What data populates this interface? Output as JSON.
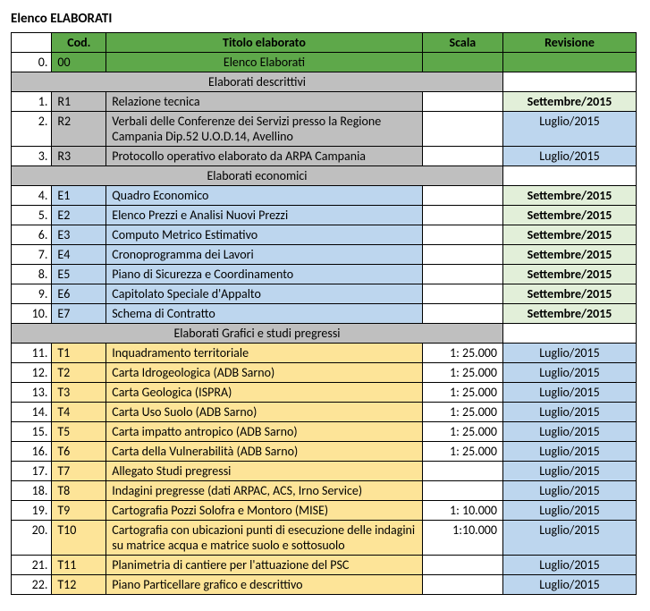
{
  "colors": {
    "headerGreen": "#5ea84a",
    "plain": "#ffffff",
    "lightGrey": "#bfbfbf",
    "lightBlue": "#bdd6ee",
    "lightGreen": "#e2efd9",
    "lightOrange": "#fde498"
  },
  "title": "Elenco ELABORATI",
  "columns": {
    "cod": "Cod.",
    "titolo": "Titolo elaborato",
    "scala": "Scala",
    "rev": "Revisione"
  },
  "row0": {
    "num": "0.",
    "cod": "00",
    "tit": "Elenco Elaborati",
    "scala": "",
    "rev": ""
  },
  "sections": [
    {
      "header": "Elaborati descrittivi",
      "codFill": "lightGrey",
      "rows": [
        {
          "num": "1.",
          "cod": "R1",
          "tit": "Relazione tecnica",
          "scala": "",
          "rev": "Settembre/2015",
          "revFill": "lightGreen",
          "revBold": true
        },
        {
          "num": "2.",
          "cod": "R2",
          "tit": "Verbali delle Conferenze dei Servizi presso la Regione Campania Dip.52  U.O.D.14, Avellino",
          "scala": "",
          "rev": "Luglio/2015",
          "revFill": "lightBlue"
        },
        {
          "num": "3.",
          "cod": "R3",
          "tit": "Protocollo operativo elaborato da ARPA Campania",
          "scala": "",
          "rev": "Luglio/2015",
          "revFill": "lightBlue"
        }
      ]
    },
    {
      "header": "Elaborati economici",
      "codFill": "lightBlue",
      "rows": [
        {
          "num": "4.",
          "cod": "E1",
          "tit": "Quadro Economico",
          "scala": "",
          "rev": "Settembre/2015",
          "revFill": "lightGreen",
          "revBold": true
        },
        {
          "num": "5.",
          "cod": "E2",
          "tit": "Elenco Prezzi e Analisi Nuovi Prezzi",
          "scala": "",
          "rev": "Settembre/2015",
          "revFill": "lightGreen",
          "revBold": true
        },
        {
          "num": "6.",
          "cod": "E3",
          "tit": "Computo Metrico Estimativo",
          "scala": "",
          "rev": "Settembre/2015",
          "revFill": "lightGreen",
          "revBold": true
        },
        {
          "num": "7.",
          "cod": "E4",
          "tit": "Cronoprogramma dei Lavori",
          "scala": "",
          "rev": "Settembre/2015",
          "revFill": "lightGreen",
          "revBold": true
        },
        {
          "num": "8.",
          "cod": "E5",
          "tit": "Piano di Sicurezza e Coordinamento",
          "scala": "",
          "rev": "Settembre/2015",
          "revFill": "lightGreen",
          "revBold": true
        },
        {
          "num": "9.",
          "cod": "E6",
          "tit": "Capitolato Speciale d'Appalto",
          "scala": "",
          "rev": "Settembre/2015",
          "revFill": "lightGreen",
          "revBold": true
        },
        {
          "num": "10.",
          "cod": "E7",
          "tit": "Schema di Contratto",
          "scala": "",
          "rev": "Settembre/2015",
          "revFill": "lightGreen",
          "revBold": true
        }
      ]
    },
    {
      "header": "Elaborati Grafici e studi pregressi",
      "codFill": "lightOrange",
      "rows": [
        {
          "num": "11.",
          "cod": "T1",
          "tit": "Inquadramento territoriale",
          "scala": "1: 25.000",
          "rev": "Luglio/2015",
          "revFill": "lightBlue"
        },
        {
          "num": "12.",
          "cod": "T2",
          "tit": "Carta Idrogeologica (ADB Sarno)",
          "scala": "1: 25.000",
          "rev": "Luglio/2015",
          "revFill": "lightBlue"
        },
        {
          "num": "13.",
          "cod": "T3",
          "tit": "Carta Geologica (ISPRA)",
          "scala": "1: 25.000",
          "rev": "Luglio/2015",
          "revFill": "lightBlue"
        },
        {
          "num": "14.",
          "cod": "T4",
          "tit": "Carta Uso Suolo (ADB Sarno)",
          "scala": "1: 25.000",
          "rev": "Luglio/2015",
          "revFill": "lightBlue"
        },
        {
          "num": "15.",
          "cod": "T5",
          "tit": "Carta impatto antropico (ADB Sarno)",
          "scala": "1: 25.000",
          "rev": "Luglio/2015",
          "revFill": "lightBlue"
        },
        {
          "num": "16.",
          "cod": "T6",
          "tit": "Carta della Vulnerabilità (ADB Sarno)",
          "scala": "1: 25.000",
          "rev": "Luglio/2015",
          "revFill": "lightBlue"
        },
        {
          "num": "17.",
          "cod": "T7",
          "tit": "Allegato Studi pregressi",
          "scala": "",
          "rev": "Luglio/2015",
          "revFill": "lightBlue"
        },
        {
          "num": "18.",
          "cod": "T8",
          "tit": "Indagini pregresse (dati ARPAC, ACS, Irno Service)",
          "scala": "",
          "rev": "Luglio/2015",
          "revFill": "lightBlue"
        },
        {
          "num": "19.",
          "cod": "T9",
          "tit": "Cartografia Pozzi Solofra e Montoro (MISE)",
          "scala": "1: 10.000",
          "rev": "Luglio/2015",
          "revFill": "lightBlue"
        },
        {
          "num": "20.",
          "cod": "T10",
          "tit": "Cartografia con ubicazioni punti di esecuzione delle indagini su matrice acqua e matrice suolo e sottosuolo",
          "scala": "1:10.000",
          "rev": "Luglio/2015",
          "revFill": "lightBlue"
        },
        {
          "num": "21.",
          "cod": "T11",
          "tit": "Planimetria di cantiere per l'attuazione del PSC",
          "scala": "",
          "rev": "Luglio/2015",
          "revFill": "lightBlue"
        },
        {
          "num": "22.",
          "cod": "T12",
          "tit": "Piano Particellare grafico e descrittivo",
          "scala": "",
          "rev": "Luglio/2015",
          "revFill": "lightBlue"
        }
      ]
    }
  ]
}
